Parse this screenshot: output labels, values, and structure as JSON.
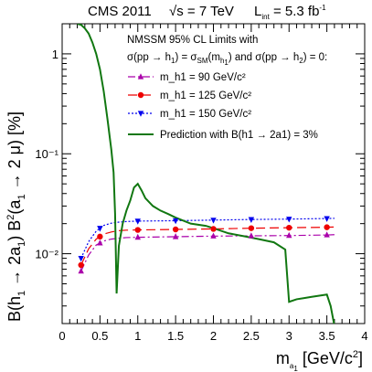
{
  "header": {
    "experiment": "CMS 2011",
    "energy": "√s = 7 TeV",
    "lumi_prefix": "L",
    "lumi_sub": "int",
    "lumi_value": " = 5.3 fb",
    "lumi_sup": "-1"
  },
  "legend": {
    "title_line1": "NMSSM 95% CL Limits with",
    "title_line2": "σ(pp → h₁) = σSM(mh₁) and σ(pp → h₂) = 0:",
    "entries": [
      {
        "label": "m_h1 =   90 GeV/c²",
        "color": "#aa00aa"
      },
      {
        "label": "m_h1 = 125 GeV/c²",
        "color": "#ee0000"
      },
      {
        "label": "m_h1 = 150 GeV/c²",
        "color": "#0000ee"
      },
      {
        "label": "Prediction with B(h1 → 2a1) = 3%",
        "color": "#117711"
      }
    ]
  },
  "axes": {
    "xlabel": "m_a1 [GeV/c²]",
    "ylabel": "B(h1 → 2a1) B²(a1 → 2 μ) [%]"
  },
  "chart_data": {
    "type": "line",
    "xlim": [
      0,
      4
    ],
    "ylim": [
      0.002,
      2
    ],
    "yscale": "log",
    "x_ticks": [
      0,
      0.5,
      1,
      1.5,
      2,
      2.5,
      3,
      3.5,
      4
    ],
    "x_tick_labels": [
      "0",
      "0.5",
      "1",
      "1.5",
      "2",
      "2.5",
      "3",
      "3.5",
      "4"
    ],
    "y_ticks": [
      0.01,
      0.1,
      1
    ],
    "y_tick_labels": [
      "10⁻²",
      "10⁻¹",
      "1"
    ],
    "series": [
      {
        "name": "m_h1 = 90 GeV/c²",
        "color": "#aa00aa",
        "dash": "8,3,2,3",
        "marker": "triangle-up",
        "points": [
          [
            0.25,
            0.0067
          ],
          [
            0.35,
            0.0097
          ],
          [
            0.45,
            0.0122
          ],
          [
            0.55,
            0.0134
          ],
          [
            0.65,
            0.014
          ],
          [
            0.75,
            0.0143
          ],
          [
            0.85,
            0.0145
          ],
          [
            1.0,
            0.0146
          ],
          [
            1.5,
            0.0148
          ],
          [
            2.0,
            0.015
          ],
          [
            2.5,
            0.0151
          ],
          [
            3.0,
            0.0152
          ],
          [
            3.5,
            0.0154
          ],
          [
            3.6,
            0.0155
          ]
        ],
        "marker_x": [
          0.25,
          0.5,
          1.0,
          1.5,
          2.0,
          2.5,
          3.0,
          3.5
        ]
      },
      {
        "name": "m_h1 = 125 GeV/c²",
        "color": "#ee0000",
        "dash": "10,5",
        "marker": "circle",
        "points": [
          [
            0.25,
            0.0077
          ],
          [
            0.35,
            0.0112
          ],
          [
            0.45,
            0.014
          ],
          [
            0.55,
            0.0157
          ],
          [
            0.65,
            0.0165
          ],
          [
            0.75,
            0.017
          ],
          [
            0.85,
            0.0172
          ],
          [
            1.0,
            0.0173
          ],
          [
            1.5,
            0.0175
          ],
          [
            2.0,
            0.0177
          ],
          [
            2.5,
            0.018
          ],
          [
            3.0,
            0.0182
          ],
          [
            3.5,
            0.0184
          ],
          [
            3.6,
            0.0185
          ]
        ],
        "marker_x": [
          0.25,
          0.5,
          1.0,
          1.5,
          2.0,
          2.5,
          3.0,
          3.5
        ]
      },
      {
        "name": "m_h1 = 150 GeV/c²",
        "color": "#0000ee",
        "dash": "2,2",
        "marker": "triangle-down",
        "points": [
          [
            0.25,
            0.009
          ],
          [
            0.35,
            0.0132
          ],
          [
            0.45,
            0.0168
          ],
          [
            0.55,
            0.0192
          ],
          [
            0.65,
            0.0202
          ],
          [
            0.75,
            0.0207
          ],
          [
            0.85,
            0.021
          ],
          [
            1.0,
            0.0212
          ],
          [
            1.5,
            0.0214
          ],
          [
            2.0,
            0.0217
          ],
          [
            2.5,
            0.022
          ],
          [
            3.0,
            0.0222
          ],
          [
            3.5,
            0.0225
          ],
          [
            3.6,
            0.0226
          ]
        ],
        "marker_x": [
          0.25,
          0.5,
          1.0,
          1.5,
          2.0,
          2.5,
          3.0,
          3.5
        ]
      },
      {
        "name": "Prediction with B(h1 → 2a1) = 3%",
        "color": "#117711",
        "dash": "",
        "marker": "none",
        "points": [
          [
            0.2,
            2.0
          ],
          [
            0.25,
            1.95
          ],
          [
            0.3,
            1.8
          ],
          [
            0.35,
            1.6
          ],
          [
            0.4,
            1.3
          ],
          [
            0.45,
            1.0
          ],
          [
            0.5,
            0.7
          ],
          [
            0.55,
            0.42
          ],
          [
            0.6,
            0.22
          ],
          [
            0.65,
            0.11
          ],
          [
            0.68,
            0.065
          ],
          [
            0.7,
            0.025
          ],
          [
            0.72,
            0.004
          ],
          [
            0.75,
            0.012
          ],
          [
            0.8,
            0.02
          ],
          [
            0.85,
            0.027
          ],
          [
            0.9,
            0.034
          ],
          [
            0.95,
            0.046
          ],
          [
            1.0,
            0.05
          ],
          [
            1.05,
            0.043
          ],
          [
            1.1,
            0.036
          ],
          [
            1.2,
            0.03
          ],
          [
            1.3,
            0.027
          ],
          [
            1.4,
            0.025
          ],
          [
            1.5,
            0.023
          ],
          [
            1.7,
            0.02
          ],
          [
            1.9,
            0.019
          ],
          [
            2.0,
            0.018
          ],
          [
            2.2,
            0.016
          ],
          [
            2.4,
            0.015
          ],
          [
            2.6,
            0.014
          ],
          [
            2.8,
            0.013
          ],
          [
            2.95,
            0.011
          ],
          [
            3.0,
            0.0033
          ],
          [
            3.1,
            0.0035
          ],
          [
            3.2,
            0.0036
          ],
          [
            3.3,
            0.0037
          ],
          [
            3.4,
            0.0038
          ],
          [
            3.5,
            0.0039
          ],
          [
            3.55,
            0.003
          ],
          [
            3.6,
            0.0019
          ]
        ]
      }
    ]
  }
}
